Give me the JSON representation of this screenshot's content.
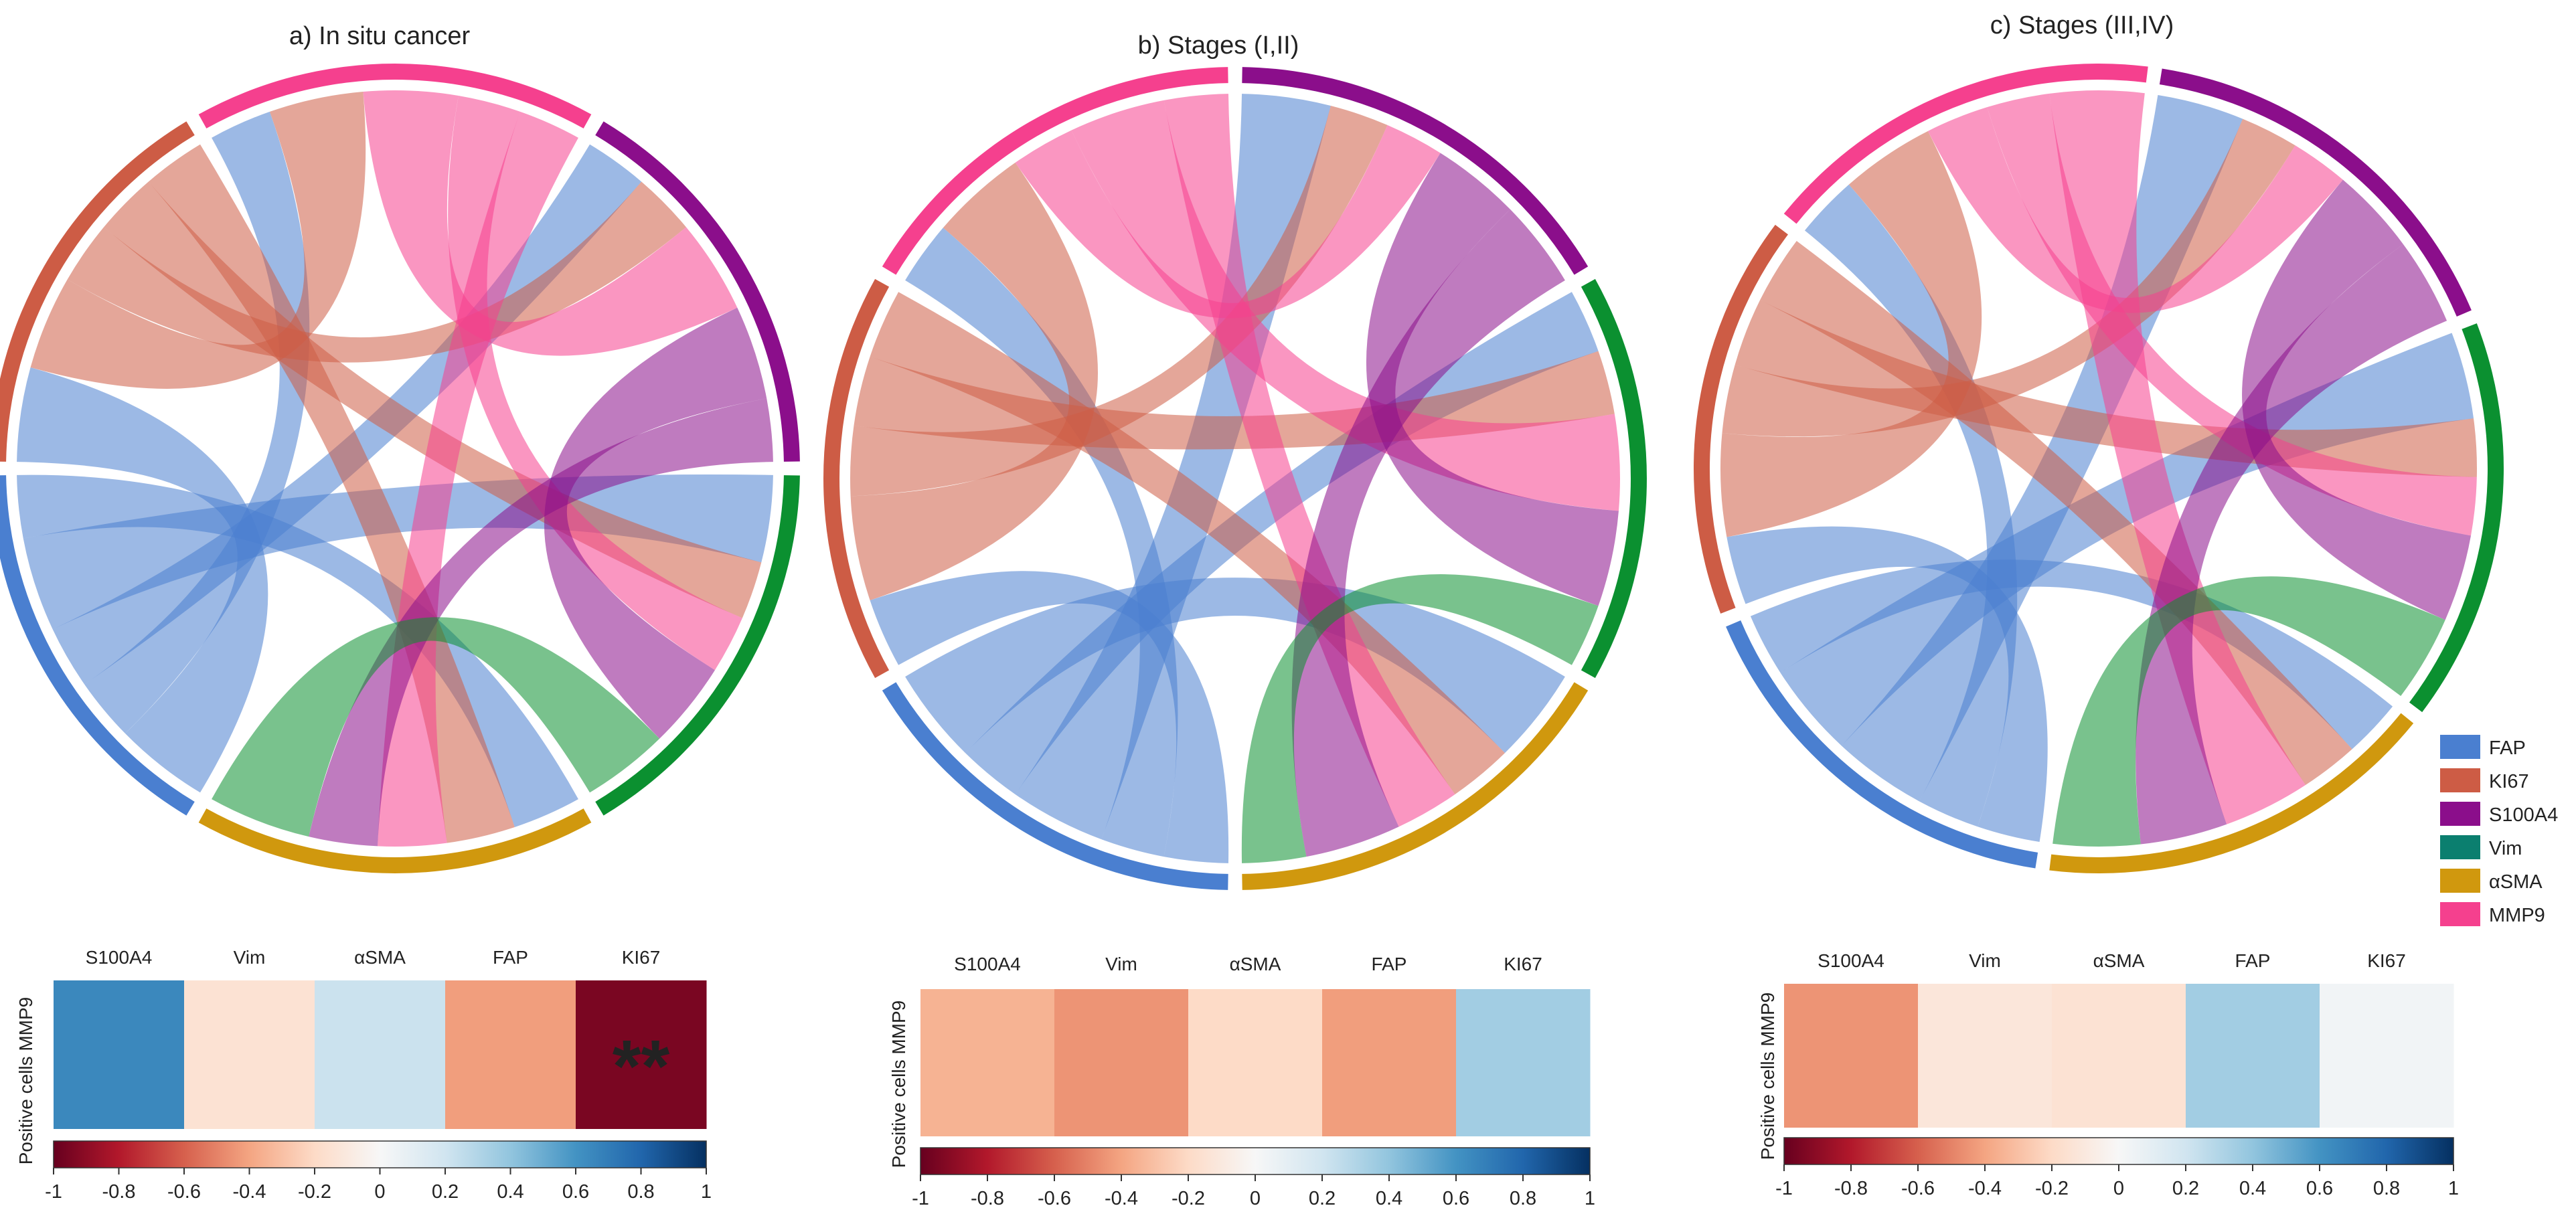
{
  "colors": {
    "FAP": "#4a7fd0",
    "KI67": "#cd5c45",
    "S100A4": "#8b0e8b",
    "Vim": "#0b9030",
    "aSMA": "#d0980e",
    "MMP9": "#f5408e"
  },
  "legend": {
    "items": [
      {
        "key": "FAP",
        "label": "FAP",
        "color": "#4a7fd0"
      },
      {
        "key": "KI67",
        "label": "KI67",
        "color": "#cd5c45"
      },
      {
        "key": "S100A4",
        "label": "S100A4",
        "color": "#8b0e8b"
      },
      {
        "key": "Vim",
        "label": "Vim",
        "color": "#0b7f6f"
      },
      {
        "key": "aSMA",
        "label": "αSMA",
        "color": "#d0980e"
      },
      {
        "key": "MMP9",
        "label": "MMP9",
        "color": "#f5408e"
      }
    ]
  },
  "chart_data": [
    {
      "type": "chord",
      "title": "a) In situ cancer",
      "sectors": [
        "FAP",
        "KI67",
        "MMP9",
        "S100A4",
        "Vim",
        "aSMA"
      ],
      "links": [
        [
          "FAP",
          "KI67",
          3
        ],
        [
          "FAP",
          "MMP9",
          2
        ],
        [
          "FAP",
          "S100A4",
          2
        ],
        [
          "FAP",
          "Vim",
          3
        ],
        [
          "FAP",
          "aSMA",
          2
        ],
        [
          "KI67",
          "MMP9",
          3
        ],
        [
          "KI67",
          "S100A4",
          2
        ],
        [
          "KI67",
          "Vim",
          2
        ],
        [
          "KI67",
          "aSMA",
          2
        ],
        [
          "MMP9",
          "S100A4",
          3
        ],
        [
          "MMP9",
          "Vim",
          2
        ],
        [
          "MMP9",
          "aSMA",
          2
        ],
        [
          "S100A4",
          "Vim",
          3
        ],
        [
          "S100A4",
          "aSMA",
          2
        ],
        [
          "Vim",
          "aSMA",
          3
        ]
      ]
    },
    {
      "type": "chord",
      "title": "b) Stages (I,II)",
      "sectors": [
        "FAP",
        "KI67",
        "MMP9",
        "S100A4",
        "Vim",
        "aSMA"
      ],
      "links": [
        [
          "FAP",
          "KI67",
          2
        ],
        [
          "FAP",
          "MMP9",
          2
        ],
        [
          "FAP",
          "S100A4",
          3
        ],
        [
          "FAP",
          "Vim",
          2
        ],
        [
          "FAP",
          "aSMA",
          3
        ],
        [
          "KI67",
          "MMP9",
          3
        ],
        [
          "KI67",
          "S100A4",
          2
        ],
        [
          "KI67",
          "Vim",
          2
        ],
        [
          "KI67",
          "aSMA",
          2
        ],
        [
          "MMP9",
          "S100A4",
          2
        ],
        [
          "MMP9",
          "Vim",
          3
        ],
        [
          "MMP9",
          "aSMA",
          2
        ],
        [
          "S100A4",
          "Vim",
          3
        ],
        [
          "S100A4",
          "aSMA",
          3
        ],
        [
          "Vim",
          "aSMA",
          2
        ]
      ]
    },
    {
      "type": "chord",
      "title": "c) Stages (III,IV)",
      "sectors": [
        "FAP",
        "KI67",
        "MMP9",
        "S100A4",
        "Vim",
        "aSMA"
      ],
      "links": [
        [
          "FAP",
          "KI67",
          2
        ],
        [
          "FAP",
          "MMP9",
          2
        ],
        [
          "FAP",
          "S100A4",
          3
        ],
        [
          "FAP",
          "Vim",
          3
        ],
        [
          "FAP",
          "aSMA",
          2
        ],
        [
          "KI67",
          "MMP9",
          3
        ],
        [
          "KI67",
          "S100A4",
          2
        ],
        [
          "KI67",
          "Vim",
          2
        ],
        [
          "KI67",
          "aSMA",
          2
        ],
        [
          "MMP9",
          "S100A4",
          2
        ],
        [
          "MMP9",
          "Vim",
          2
        ],
        [
          "MMP9",
          "aSMA",
          3
        ],
        [
          "S100A4",
          "Vim",
          3
        ],
        [
          "S100A4",
          "aSMA",
          3
        ],
        [
          "Vim",
          "aSMA",
          3
        ]
      ]
    },
    {
      "type": "heatmap",
      "ylabel": "Positive cells MMP9",
      "columns": [
        "S100A4",
        "Vim",
        "αSMA",
        "FAP",
        "KI67"
      ],
      "values": [
        0.65,
        -0.15,
        0.22,
        -0.42,
        -0.95
      ],
      "annotations": [
        "",
        "",
        "",
        "",
        "**"
      ],
      "colorbar": {
        "range": [
          -1,
          1
        ],
        "ticks": [
          "-1",
          "-0.8",
          "-0.6",
          "-0.4",
          "-0.2",
          "0",
          "0.2",
          "0.4",
          "0.6",
          "0.8",
          "1"
        ]
      }
    },
    {
      "type": "heatmap",
      "ylabel": "Positive cells MMP9",
      "columns": [
        "S100A4",
        "Vim",
        "αSMA",
        "FAP",
        "KI67"
      ],
      "values": [
        -0.35,
        -0.45,
        -0.2,
        -0.42,
        0.35
      ],
      "annotations": [
        "",
        "",
        "",
        "",
        ""
      ],
      "colorbar": {
        "range": [
          -1,
          1
        ],
        "ticks": [
          "-1",
          "-0.8",
          "-0.6",
          "-0.4",
          "-0.2",
          "0",
          "0.2",
          "0.4",
          "0.6",
          "0.8",
          "1"
        ]
      }
    },
    {
      "type": "heatmap",
      "ylabel": "Positive cells MMP9",
      "columns": [
        "S100A4",
        "Vim",
        "αSMA",
        "FAP",
        "KI67"
      ],
      "values": [
        -0.45,
        -0.12,
        -0.15,
        0.35,
        0.03
      ],
      "annotations": [
        "",
        "",
        "",
        "",
        ""
      ],
      "colorbar": {
        "range": [
          -1,
          1
        ],
        "ticks": [
          "-1",
          "-0.8",
          "-0.6",
          "-0.4",
          "-0.2",
          "0",
          "0.2",
          "0.4",
          "0.6",
          "0.8",
          "1"
        ]
      }
    }
  ]
}
